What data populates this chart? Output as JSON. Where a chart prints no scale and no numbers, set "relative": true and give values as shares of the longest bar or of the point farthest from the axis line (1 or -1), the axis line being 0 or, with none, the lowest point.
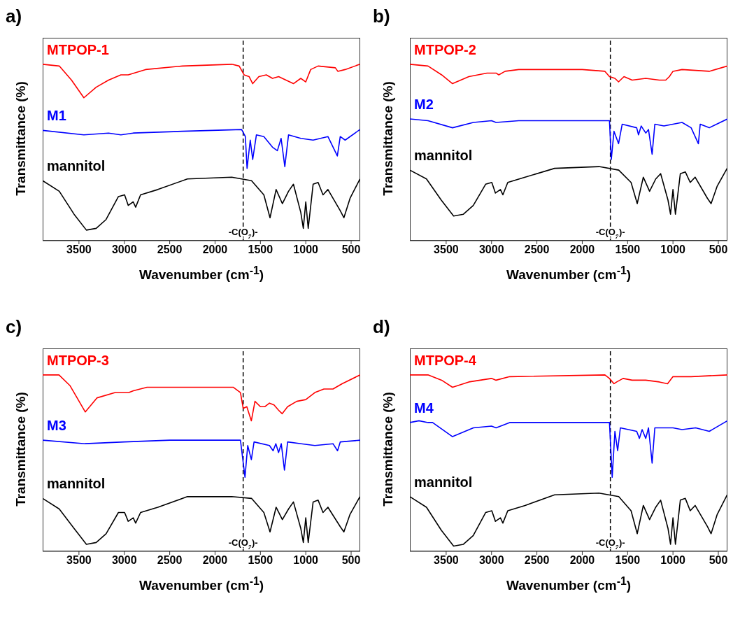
{
  "chart_data": [
    {
      "type": "line",
      "title": "a)",
      "xlabel": "Wavenumber (cm$^{-1}$)",
      "ylabel": "Transmittance (%)",
      "relative": true,
      "xlim": [
        3900,
        400
      ],
      "xticks": [
        3500,
        3000,
        2500,
        2000,
        1500,
        1000,
        500
      ],
      "ref_lines": [
        {
          "axis": "x",
          "value": 1690,
          "label": "-C(O$_{2}$)-",
          "line_style": "dashed",
          "color": "#000000"
        }
      ],
      "series": [
        {
          "name": "MTPOP-1",
          "color": "#ff0000",
          "x": [
            3900,
            3717,
            3582,
            3446,
            3310,
            3174,
            3038,
            2957,
            2766,
            2359,
            1816,
            1734,
            1680,
            1625,
            1585,
            1517,
            1435,
            1367,
            1299,
            1218,
            1136,
            1055,
            1000,
            946,
            864,
            674,
            647,
            566,
            403
          ],
          "values": [
            1.0,
            0.99,
            0.91,
            0.81,
            0.87,
            0.91,
            0.94,
            0.94,
            0.97,
            0.99,
            1.0,
            0.99,
            0.94,
            0.93,
            0.89,
            0.93,
            0.94,
            0.92,
            0.93,
            0.91,
            0.89,
            0.92,
            0.9,
            0.97,
            0.99,
            0.98,
            0.96,
            0.97,
            1.0
          ]
        },
        {
          "name": "M1",
          "color": "#0000ff",
          "x": [
            3900,
            3446,
            3174,
            3038,
            2902,
            2359,
            1707,
            1666,
            1647,
            1612,
            1585,
            1544,
            1462,
            1367,
            1313,
            1272,
            1231,
            1190,
            1055,
            919,
            756,
            652,
            620,
            566,
            403
          ],
          "values": [
            0.625,
            0.6,
            0.61,
            0.6,
            0.61,
            0.62,
            0.63,
            0.59,
            0.41,
            0.57,
            0.46,
            0.6,
            0.59,
            0.53,
            0.51,
            0.58,
            0.42,
            0.6,
            0.58,
            0.57,
            0.59,
            0.48,
            0.59,
            0.57,
            0.63
          ]
        },
        {
          "name": "mannitol",
          "color": "#000000",
          "x": [
            3900,
            3717,
            3554,
            3418,
            3310,
            3201,
            3065,
            2997,
            2957,
            2902,
            2875,
            2821,
            2630,
            2305,
            1816,
            1598,
            1462,
            1394,
            1327,
            1258,
            1190,
            1136,
            1055,
            1027,
            1000,
            973,
            919,
            864,
            810,
            756,
            620,
            580,
            512,
            403
          ],
          "values": [
            0.34,
            0.28,
            0.15,
            0.06,
            0.07,
            0.12,
            0.25,
            0.26,
            0.2,
            0.22,
            0.19,
            0.26,
            0.29,
            0.35,
            0.36,
            0.34,
            0.26,
            0.13,
            0.29,
            0.21,
            0.28,
            0.32,
            0.16,
            0.07,
            0.22,
            0.07,
            0.32,
            0.33,
            0.26,
            0.29,
            0.17,
            0.13,
            0.24,
            0.35
          ]
        }
      ]
    },
    {
      "type": "line",
      "title": "b)",
      "xlabel": "Wavenumber (cm$^{-1}$)",
      "ylabel": "Transmittance (%)",
      "relative": true,
      "xlim": [
        3900,
        400
      ],
      "xticks": [
        3500,
        3000,
        2500,
        2000,
        1500,
        1000,
        500
      ],
      "ref_lines": [
        {
          "axis": "x",
          "value": 1690,
          "label": "-C(O$_{2}$)-",
          "line_style": "dashed",
          "color": "#000000"
        }
      ],
      "series": [
        {
          "name": "MTPOP-2",
          "color": "#ff0000",
          "x": [
            3900,
            3700,
            3550,
            3430,
            3250,
            3050,
            2950,
            2920,
            2850,
            2700,
            2000,
            1750,
            1700,
            1640,
            1600,
            1540,
            1450,
            1300,
            1150,
            1080,
            1040,
            1000,
            900,
            600,
            400
          ],
          "values": [
            1.0,
            0.99,
            0.94,
            0.89,
            0.93,
            0.95,
            0.95,
            0.94,
            0.96,
            0.97,
            0.97,
            0.96,
            0.93,
            0.92,
            0.9,
            0.93,
            0.91,
            0.92,
            0.91,
            0.91,
            0.93,
            0.96,
            0.97,
            0.96,
            0.99
          ]
        },
        {
          "name": "M2",
          "color": "#0000ff",
          "x": [
            3900,
            3700,
            3430,
            3200,
            3000,
            2950,
            2700,
            2000,
            1700,
            1680,
            1650,
            1600,
            1560,
            1400,
            1380,
            1350,
            1300,
            1270,
            1230,
            1200,
            1100,
            1000,
            900,
            800,
            720,
            700,
            600,
            400
          ],
          "values": [
            0.69,
            0.68,
            0.64,
            0.67,
            0.68,
            0.67,
            0.68,
            0.68,
            0.68,
            0.46,
            0.62,
            0.55,
            0.66,
            0.64,
            0.6,
            0.65,
            0.61,
            0.63,
            0.49,
            0.66,
            0.65,
            0.66,
            0.67,
            0.64,
            0.55,
            0.66,
            0.64,
            0.69
          ]
        },
        {
          "name": "mannitol",
          "color": "#000000",
          "x": [
            3900,
            3717,
            3554,
            3418,
            3310,
            3201,
            3065,
            2997,
            2957,
            2902,
            2875,
            2821,
            2630,
            2305,
            1816,
            1598,
            1462,
            1394,
            1327,
            1258,
            1190,
            1136,
            1055,
            1027,
            1000,
            973,
            919,
            864,
            810,
            756,
            620,
            580,
            512,
            403
          ],
          "values": [
            0.4,
            0.35,
            0.23,
            0.14,
            0.15,
            0.2,
            0.32,
            0.33,
            0.27,
            0.29,
            0.26,
            0.33,
            0.36,
            0.41,
            0.42,
            0.4,
            0.33,
            0.21,
            0.36,
            0.28,
            0.35,
            0.38,
            0.23,
            0.15,
            0.29,
            0.15,
            0.38,
            0.39,
            0.33,
            0.36,
            0.24,
            0.21,
            0.31,
            0.41
          ]
        }
      ]
    },
    {
      "type": "line",
      "title": "c)",
      "xlabel": "Wavenumber (cm$^{-1}$)",
      "ylabel": "Transmittance (%)",
      "relative": true,
      "xlim": [
        3900,
        400
      ],
      "xticks": [
        3500,
        3000,
        2500,
        2000,
        1500,
        1000,
        500
      ],
      "ref_lines": [
        {
          "axis": "x",
          "value": 1690,
          "label": "-C(O$_{2}$)-",
          "line_style": "dashed",
          "color": "#000000"
        }
      ],
      "series": [
        {
          "name": "MTPOP-3",
          "color": "#ff0000",
          "x": [
            3900,
            3720,
            3600,
            3430,
            3300,
            3100,
            2950,
            2900,
            2750,
            2300,
            1800,
            1720,
            1690,
            1650,
            1600,
            1560,
            1500,
            1450,
            1400,
            1350,
            1300,
            1260,
            1200,
            1100,
            1000,
            900,
            800,
            700,
            600,
            400
          ],
          "values": [
            1.0,
            1.0,
            0.94,
            0.79,
            0.87,
            0.9,
            0.9,
            0.91,
            0.93,
            0.93,
            0.93,
            0.9,
            0.81,
            0.82,
            0.74,
            0.85,
            0.82,
            0.82,
            0.84,
            0.83,
            0.8,
            0.78,
            0.82,
            0.85,
            0.86,
            0.9,
            0.92,
            0.92,
            0.95,
            1.0
          ]
        },
        {
          "name": "M3",
          "color": "#0000ff",
          "x": [
            3900,
            3430,
            3000,
            2500,
            1720,
            1670,
            1640,
            1600,
            1570,
            1400,
            1360,
            1330,
            1300,
            1270,
            1235,
            1200,
            1050,
            900,
            700,
            650,
            620,
            400
          ],
          "values": [
            0.63,
            0.61,
            0.62,
            0.63,
            0.63,
            0.42,
            0.6,
            0.52,
            0.62,
            0.6,
            0.57,
            0.61,
            0.56,
            0.61,
            0.46,
            0.62,
            0.61,
            0.6,
            0.61,
            0.57,
            0.62,
            0.63
          ]
        },
        {
          "name": "mannitol",
          "color": "#000000",
          "x": [
            3900,
            3717,
            3554,
            3418,
            3310,
            3201,
            3065,
            2997,
            2957,
            2902,
            2875,
            2821,
            2630,
            2305,
            1816,
            1598,
            1462,
            1394,
            1327,
            1258,
            1190,
            1136,
            1055,
            1027,
            1000,
            973,
            919,
            864,
            810,
            756,
            620,
            580,
            512,
            403
          ],
          "values": [
            0.3,
            0.24,
            0.13,
            0.04,
            0.05,
            0.1,
            0.22,
            0.22,
            0.17,
            0.19,
            0.16,
            0.22,
            0.25,
            0.31,
            0.31,
            0.3,
            0.22,
            0.11,
            0.25,
            0.18,
            0.24,
            0.28,
            0.13,
            0.05,
            0.19,
            0.05,
            0.28,
            0.29,
            0.22,
            0.25,
            0.14,
            0.11,
            0.21,
            0.31
          ]
        }
      ]
    },
    {
      "type": "line",
      "title": "d)",
      "xlabel": "Wavenumber (cm$^{-1}$)",
      "ylabel": "Transmittance (%)",
      "relative": true,
      "xlim": [
        3900,
        400
      ],
      "xticks": [
        3500,
        3000,
        2500,
        2000,
        1500,
        1000,
        500
      ],
      "ref_lines": [
        {
          "axis": "x",
          "value": 1690,
          "label": "-C(O$_{2}$)-",
          "line_style": "dashed",
          "color": "#000000"
        }
      ],
      "series": [
        {
          "name": "MTPOP-4",
          "color": "#ff0000",
          "x": [
            3900,
            3700,
            3550,
            3430,
            3250,
            3000,
            2950,
            2800,
            1750,
            1700,
            1650,
            1620,
            1550,
            1450,
            1300,
            1150,
            1060,
            1000,
            800,
            400
          ],
          "values": [
            1.0,
            1.0,
            0.97,
            0.93,
            0.96,
            0.98,
            0.97,
            0.99,
            1.0,
            0.98,
            0.95,
            0.96,
            0.98,
            0.97,
            0.97,
            0.96,
            0.95,
            0.99,
            0.99,
            1.0
          ]
        },
        {
          "name": "M4",
          "color": "#0000ff",
          "x": [
            3900,
            3800,
            3700,
            3650,
            3430,
            3200,
            3000,
            2950,
            2800,
            1700,
            1670,
            1640,
            1610,
            1580,
            1400,
            1370,
            1340,
            1300,
            1270,
            1230,
            1200,
            1000,
            900,
            750,
            600,
            400
          ],
          "values": [
            0.73,
            0.74,
            0.73,
            0.73,
            0.65,
            0.7,
            0.71,
            0.7,
            0.73,
            0.73,
            0.42,
            0.68,
            0.57,
            0.7,
            0.68,
            0.64,
            0.69,
            0.64,
            0.7,
            0.5,
            0.7,
            0.7,
            0.69,
            0.7,
            0.68,
            0.74
          ]
        },
        {
          "name": "mannitol",
          "color": "#000000",
          "x": [
            3900,
            3717,
            3554,
            3418,
            3310,
            3201,
            3065,
            2997,
            2957,
            2902,
            2875,
            2821,
            2630,
            2305,
            1816,
            1598,
            1462,
            1394,
            1327,
            1258,
            1190,
            1136,
            1055,
            1027,
            1000,
            973,
            919,
            864,
            810,
            756,
            620,
            580,
            512,
            403
          ],
          "values": [
            0.31,
            0.25,
            0.12,
            0.03,
            0.04,
            0.09,
            0.22,
            0.23,
            0.17,
            0.19,
            0.16,
            0.23,
            0.26,
            0.32,
            0.33,
            0.31,
            0.23,
            0.1,
            0.26,
            0.18,
            0.25,
            0.29,
            0.13,
            0.04,
            0.19,
            0.04,
            0.29,
            0.3,
            0.23,
            0.26,
            0.14,
            0.1,
            0.21,
            0.32
          ]
        }
      ]
    }
  ]
}
